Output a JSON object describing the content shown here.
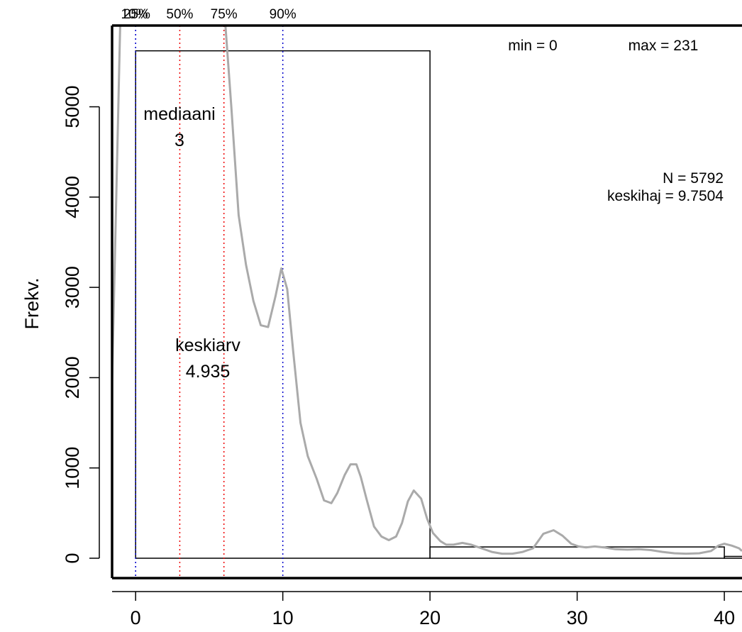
{
  "chart_data": {
    "type": "bar",
    "ylabel": "Frekv.",
    "xlim": [
      -1.6,
      41.2
    ],
    "ylim": [
      -220,
      5900
    ],
    "x_ticks": [
      0,
      10,
      20,
      30,
      40
    ],
    "y_ticks": [
      0,
      1000,
      2000,
      3000,
      4000,
      5000
    ],
    "histogram_bins": [
      {
        "x0": 0,
        "x1": 20,
        "count": 5620
      },
      {
        "x0": 20,
        "x1": 40,
        "count": 125
      },
      {
        "x0": 40,
        "x1": 60,
        "count": 20
      }
    ],
    "density_curve": {
      "color": "#aaaaaa",
      "x": [
        -1.6,
        -1.05,
        6.1,
        6.5,
        7,
        7.5,
        8,
        8.5,
        9,
        9.5,
        9.9,
        10.3,
        10.7,
        11.2,
        11.7,
        12.3,
        12.8,
        13.3,
        13.7,
        14.2,
        14.6,
        15,
        15.3,
        15.7,
        16.2,
        16.7,
        17.2,
        17.7,
        18.1,
        18.5,
        18.9,
        19.4,
        19.8,
        20.2,
        20.7,
        21.1,
        21.6,
        22.2,
        22.8,
        23.5,
        24.2,
        24.9,
        25.6,
        26.3,
        27,
        27.7,
        28.4,
        29,
        29.6,
        30.1,
        30.6,
        31.2,
        31.8,
        32.6,
        33.4,
        34.2,
        35,
        35.8,
        36.6,
        37.4,
        38.3,
        39.1,
        39.6,
        40,
        40.5,
        41,
        41.2
      ],
      "y": [
        1960,
        5900,
        5900,
        5000,
        3800,
        3250,
        2850,
        2580,
        2560,
        2900,
        3210,
        2980,
        2300,
        1500,
        1130,
        880,
        640,
        610,
        720,
        920,
        1040,
        1040,
        900,
        650,
        350,
        240,
        200,
        240,
        390,
        630,
        750,
        660,
        440,
        280,
        190,
        150,
        150,
        170,
        150,
        110,
        70,
        50,
        50,
        70,
        110,
        270,
        310,
        250,
        160,
        130,
        120,
        130,
        120,
        100,
        95,
        100,
        90,
        70,
        55,
        50,
        55,
        80,
        140,
        160,
        140,
        110,
        80
      ]
    },
    "quantile_lines": [
      {
        "label": "10%",
        "value": 0,
        "color": "#0000cc",
        "label_x": -0.08
      },
      {
        "label": "25%",
        "value": 0,
        "color": "#0000cc",
        "label_x": 0.08
      },
      {
        "label": "50%",
        "value": 3,
        "color": "#ee0000",
        "label_x": 3.0
      },
      {
        "label": "75%",
        "value": 6,
        "color": "#ee0000",
        "label_x": 6.0
      },
      {
        "label": "90%",
        "value": 10,
        "color": "#0000cc",
        "label_x": 10.0
      }
    ],
    "annotations": {
      "median": {
        "label": "mediaani",
        "value": "3"
      },
      "mean": {
        "label": "keskiarv",
        "value": "4.935"
      },
      "min": "min = 0",
      "max": "max = 231",
      "n": "N = 5792",
      "sd": "keskihaj = 9.7504"
    }
  }
}
